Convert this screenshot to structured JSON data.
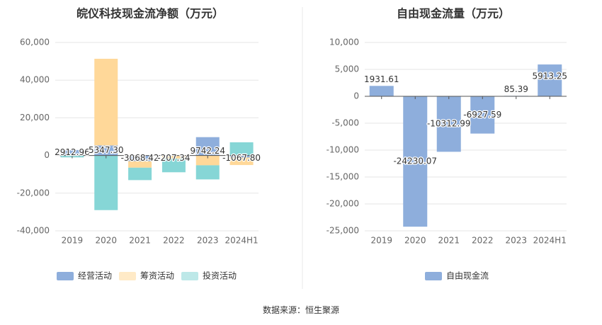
{
  "footer": {
    "source_label": "数据来源：恒生聚源"
  },
  "chart_data": [
    {
      "type": "bar",
      "stacked": true,
      "title": "皖仪科技现金流净额（万元）",
      "categories": [
        "2019",
        "2020",
        "2021",
        "2022",
        "2023",
        "2024H1"
      ],
      "ylim": [
        -40000,
        60000
      ],
      "yticks": [
        -40000,
        -20000,
        0,
        20000,
        40000,
        60000
      ],
      "ytick_labels": [
        "-40,000",
        "-20,000",
        "0",
        "20,000",
        "40,000",
        "60,000"
      ],
      "grid": true,
      "legend_position": "bottom",
      "series": [
        {
          "name": "经营活动",
          "color": "#8eaedc",
          "values": [
            2912.96,
            5347.3,
            -3068.42,
            -207.34,
            9742.24,
            -1067.8
          ]
        },
        {
          "name": "筹资活动",
          "color": "#ffd899",
          "values": [
            0,
            46000,
            -3400,
            -1400,
            -5200,
            -4000
          ]
        },
        {
          "name": "投资活动",
          "color": "#86d6d6",
          "values": [
            -1000,
            -29000,
            -6600,
            -7300,
            -7500,
            7000
          ]
        }
      ],
      "data_labels": [
        "2912.96",
        "5347.30",
        "-3068.42",
        "-207.34",
        "9742.24",
        "-1067.80"
      ],
      "colors": {
        "grid": "#e6e6e6",
        "tick_text": "#666666",
        "title_text": "#333333",
        "label_text": "#333333"
      }
    },
    {
      "type": "bar",
      "title": "自由现金流量（万元）",
      "categories": [
        "2019",
        "2020",
        "2021",
        "2022",
        "2023",
        "2024H1"
      ],
      "ylim": [
        -25000,
        10000
      ],
      "yticks": [
        -25000,
        -20000,
        -15000,
        -10000,
        -5000,
        0,
        5000,
        10000
      ],
      "ytick_labels": [
        "-25,000",
        "-20,000",
        "-15,000",
        "-10,000",
        "-5,000",
        "0",
        "5,000",
        "10,000"
      ],
      "grid": true,
      "legend_position": "bottom",
      "series": [
        {
          "name": "自由现金流",
          "color": "#8eaedc",
          "values": [
            1931.61,
            -24230.07,
            -10312.99,
            -6927.59,
            85.39,
            5913.25
          ]
        }
      ],
      "data_labels": [
        "1931.61",
        "-24230.07",
        "-10312.99",
        "-6927.59",
        "85.39",
        "5913.25"
      ],
      "colors": {
        "grid": "#e6e6e6",
        "tick_text": "#666666",
        "title_text": "#333333",
        "label_text": "#333333",
        "divider": "#e8e8e8"
      }
    }
  ]
}
